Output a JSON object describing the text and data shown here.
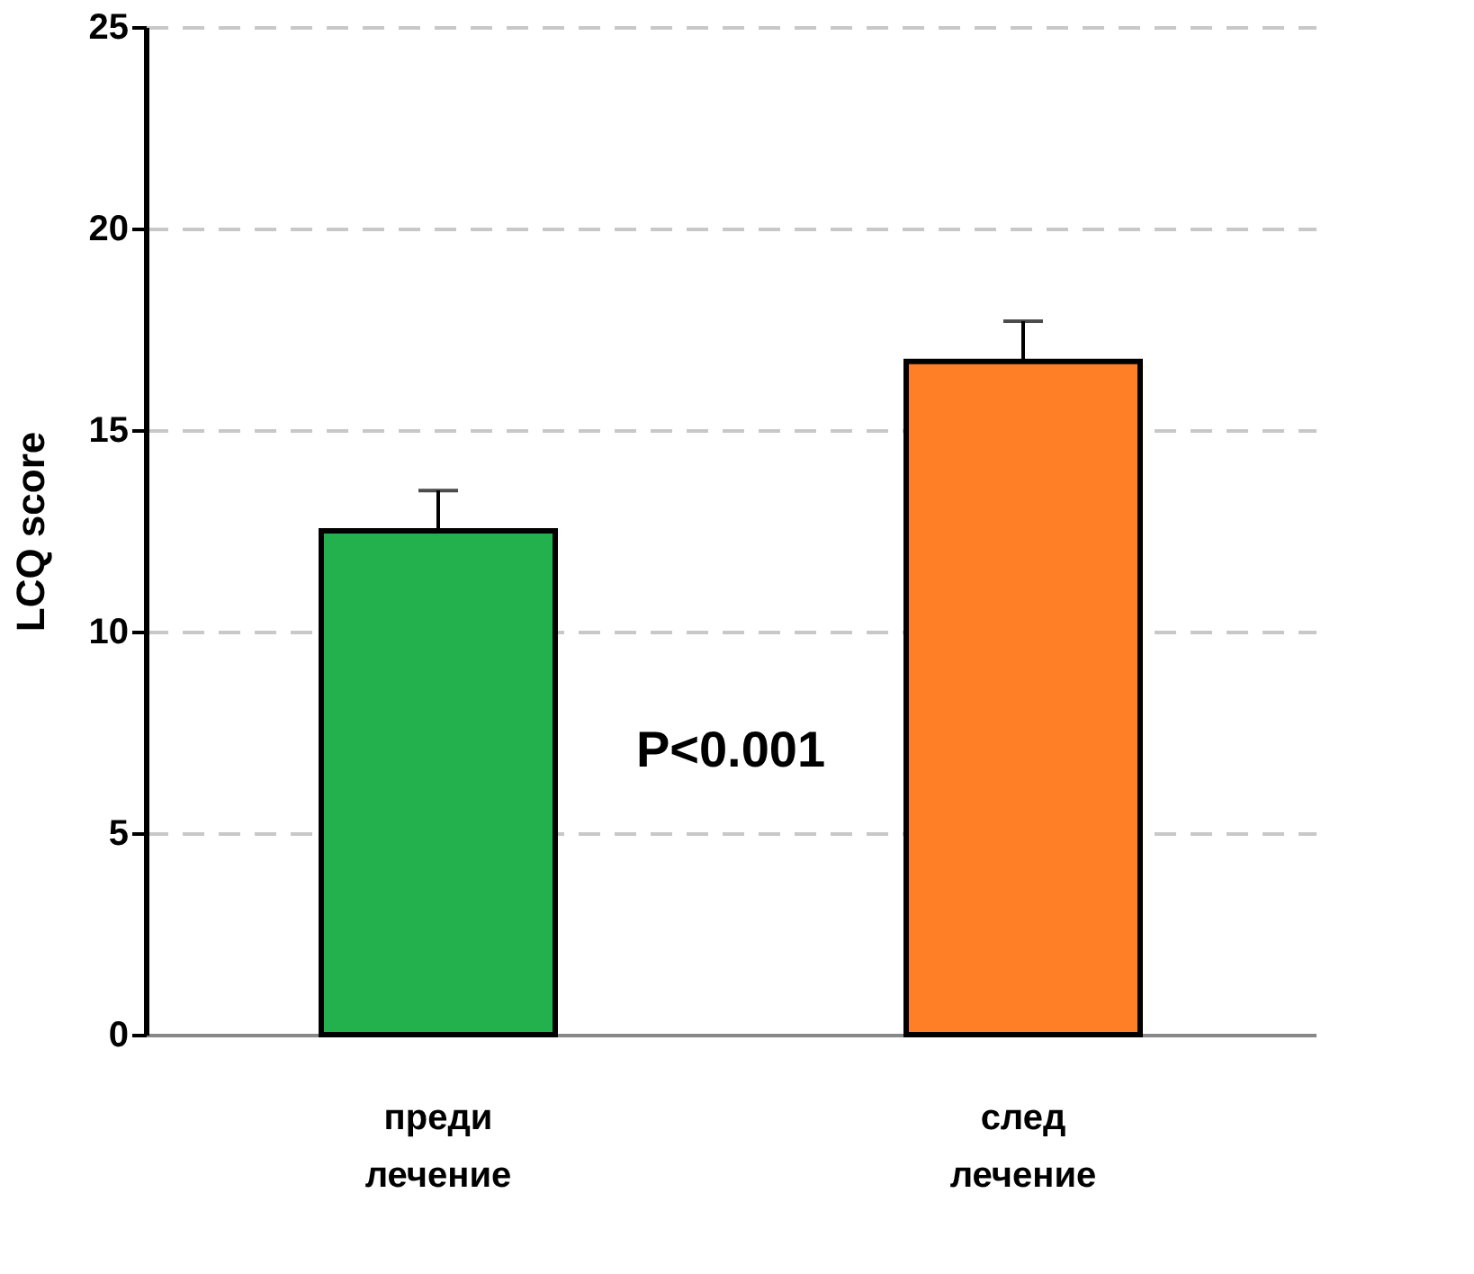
{
  "chart_data": {
    "type": "bar",
    "ylabel": "LCQ score",
    "categories": [
      "преди\nлечение",
      "след\nлечение"
    ],
    "values": [
      12.5,
      16.7
    ],
    "colors": [
      "#22b14c",
      "#ff7f27"
    ],
    "errors": [
      1.0,
      1.0
    ],
    "ylim": [
      0,
      25
    ],
    "yticks": [
      0,
      5,
      10,
      15,
      20,
      25
    ],
    "grid": "y",
    "annotations": [
      "P<0.001"
    ]
  }
}
